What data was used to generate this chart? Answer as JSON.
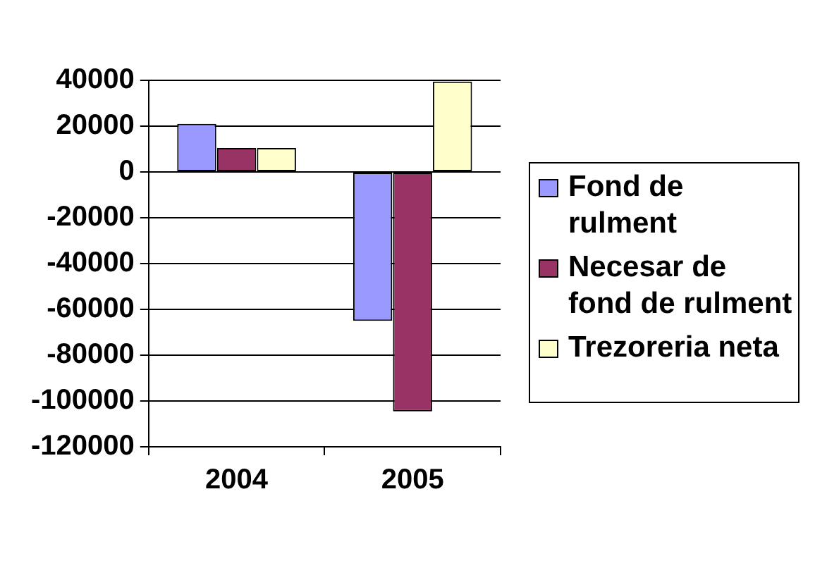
{
  "chart_data": {
    "type": "bar",
    "categories": [
      "2004",
      "2005"
    ],
    "series": [
      {
        "name": "Fond de rulment",
        "color": "#9999ff",
        "values": [
          21000,
          -65000
        ]
      },
      {
        "name": "Necesar de fond de rulment",
        "color": "#993366",
        "values": [
          10500,
          -104500
        ]
      },
      {
        "name": "Trezoreria neta",
        "color": "#ffffcc",
        "values": [
          10500,
          39500
        ]
      }
    ],
    "ylim": [
      -120000,
      40000
    ],
    "yticks": [
      -120000,
      -100000,
      -80000,
      -60000,
      -40000,
      -20000,
      0,
      20000,
      40000
    ],
    "grid": "y",
    "legend": "right"
  }
}
